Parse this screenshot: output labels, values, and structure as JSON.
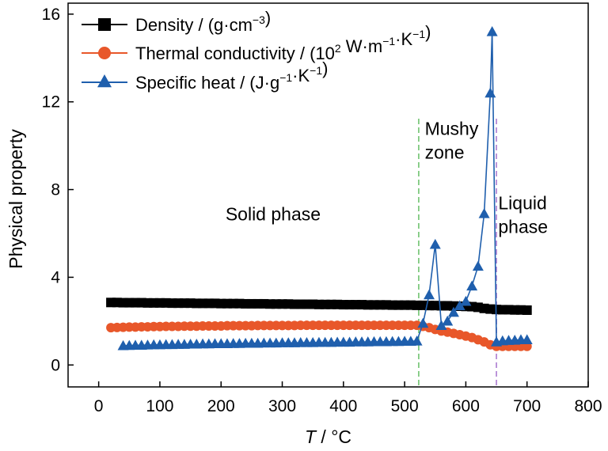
{
  "chart_data": {
    "type": "line",
    "xlabel": {
      "italic": "T",
      "rest": " / °C"
    },
    "ylabel": "Physical property",
    "xlim": [
      -50,
      800
    ],
    "ylim": [
      -1,
      16.5
    ],
    "xticks": [
      0,
      100,
      200,
      300,
      400,
      500,
      600,
      700,
      800
    ],
    "yticks": [
      0,
      4,
      8,
      12,
      16
    ],
    "grid": false,
    "legend_position": "top-left",
    "legend_entries": [
      {
        "parts": [
          [
            "Density / (g·cm",
            ""
          ],
          [
            "−3",
            "sup"
          ],
          [
            ")",
            ""
          ]
        ]
      },
      {
        "parts": [
          [
            "Thermal conductivity / (10",
            ""
          ],
          [
            "2",
            "sup"
          ],
          [
            " W·m",
            ""
          ],
          [
            "−1",
            "sup"
          ],
          [
            "·K",
            ""
          ],
          [
            "−1",
            "sup"
          ],
          [
            ")",
            ""
          ]
        ]
      },
      {
        "parts": [
          [
            "Specific heat / (J·g",
            ""
          ],
          [
            "−1",
            "sup"
          ],
          [
            "·K",
            ""
          ],
          [
            "−1",
            "sup"
          ],
          [
            ")",
            ""
          ]
        ]
      }
    ],
    "annotations": [
      {
        "lines": [
          "Solid phase"
        ],
        "x": 285,
        "y": 6.6,
        "anchor": "middle"
      },
      {
        "lines": [
          "Mushy",
          "zone"
        ],
        "x": 533,
        "y": 10.5,
        "anchor": "start"
      },
      {
        "lines": [
          "Liquid",
          "phase"
        ],
        "x": 653,
        "y": 7.1,
        "anchor": "start"
      }
    ],
    "vlines": [
      {
        "x": 523,
        "color": "#7fc97f"
      },
      {
        "x": 650,
        "color": "#b589d6"
      }
    ],
    "series": [
      {
        "name": "Density",
        "color": "#000000",
        "marker": "square",
        "x": [
          20,
          30,
          40,
          50,
          60,
          70,
          80,
          90,
          100,
          110,
          120,
          130,
          140,
          150,
          160,
          170,
          180,
          190,
          200,
          210,
          220,
          230,
          240,
          250,
          260,
          270,
          280,
          290,
          300,
          310,
          320,
          330,
          340,
          350,
          360,
          370,
          380,
          390,
          400,
          410,
          420,
          430,
          440,
          450,
          460,
          470,
          480,
          490,
          500,
          510,
          520,
          530,
          540,
          550,
          560,
          570,
          580,
          590,
          600,
          610,
          620,
          630,
          640,
          650,
          660,
          670,
          680,
          690,
          700
        ],
        "y": [
          2.85,
          2.85,
          2.84,
          2.84,
          2.84,
          2.84,
          2.83,
          2.83,
          2.83,
          2.83,
          2.82,
          2.82,
          2.82,
          2.82,
          2.81,
          2.81,
          2.81,
          2.81,
          2.8,
          2.8,
          2.8,
          2.8,
          2.79,
          2.79,
          2.79,
          2.79,
          2.78,
          2.78,
          2.78,
          2.78,
          2.77,
          2.77,
          2.77,
          2.77,
          2.76,
          2.76,
          2.76,
          2.76,
          2.75,
          2.75,
          2.75,
          2.75,
          2.74,
          2.74,
          2.74,
          2.74,
          2.73,
          2.73,
          2.73,
          2.73,
          2.72,
          2.72,
          2.71,
          2.71,
          2.7,
          2.7,
          2.69,
          2.68,
          2.67,
          2.66,
          2.63,
          2.58,
          2.55,
          2.53,
          2.52,
          2.52,
          2.51,
          2.51,
          2.5
        ]
      },
      {
        "name": "Thermal conductivity",
        "color": "#e8572a",
        "marker": "circle",
        "x": [
          20,
          30,
          40,
          50,
          60,
          70,
          80,
          90,
          100,
          110,
          120,
          130,
          140,
          150,
          160,
          170,
          180,
          190,
          200,
          210,
          220,
          230,
          240,
          250,
          260,
          270,
          280,
          290,
          300,
          310,
          320,
          330,
          340,
          350,
          360,
          370,
          380,
          390,
          400,
          410,
          420,
          430,
          440,
          450,
          460,
          470,
          480,
          490,
          500,
          510,
          520,
          530,
          540,
          550,
          560,
          570,
          580,
          590,
          600,
          610,
          620,
          630,
          640,
          650,
          660,
          670,
          680,
          690,
          700
        ],
        "y": [
          1.7,
          1.71,
          1.72,
          1.73,
          1.73,
          1.74,
          1.74,
          1.75,
          1.75,
          1.76,
          1.76,
          1.76,
          1.77,
          1.77,
          1.77,
          1.78,
          1.78,
          1.78,
          1.78,
          1.79,
          1.79,
          1.79,
          1.79,
          1.79,
          1.8,
          1.8,
          1.8,
          1.8,
          1.8,
          1.8,
          1.8,
          1.81,
          1.81,
          1.81,
          1.81,
          1.81,
          1.81,
          1.81,
          1.81,
          1.81,
          1.81,
          1.81,
          1.81,
          1.81,
          1.81,
          1.81,
          1.81,
          1.81,
          1.81,
          1.81,
          1.81,
          1.76,
          1.7,
          1.62,
          1.55,
          1.5,
          1.44,
          1.38,
          1.32,
          1.25,
          1.15,
          1.05,
          0.92,
          0.85,
          0.85,
          0.85,
          0.85,
          0.85,
          0.85
        ]
      },
      {
        "name": "Specific heat",
        "color": "#1f5fad",
        "marker": "triangle",
        "x": [
          40,
          50,
          60,
          70,
          80,
          90,
          100,
          110,
          120,
          130,
          140,
          150,
          160,
          170,
          180,
          190,
          200,
          210,
          220,
          230,
          240,
          250,
          260,
          270,
          280,
          290,
          300,
          310,
          320,
          330,
          340,
          350,
          360,
          370,
          380,
          390,
          400,
          410,
          420,
          430,
          440,
          450,
          460,
          470,
          480,
          490,
          500,
          510,
          520,
          530,
          540,
          550,
          560,
          570,
          580,
          590,
          600,
          610,
          620,
          630,
          640,
          643,
          650,
          660,
          670,
          680,
          690,
          700
        ],
        "y": [
          0.88,
          0.89,
          0.9,
          0.9,
          0.91,
          0.92,
          0.92,
          0.93,
          0.93,
          0.94,
          0.94,
          0.95,
          0.95,
          0.96,
          0.96,
          0.97,
          0.97,
          0.97,
          0.98,
          0.98,
          0.99,
          0.99,
          0.99,
          1.0,
          1.0,
          1.0,
          1.01,
          1.01,
          1.01,
          1.02,
          1.02,
          1.02,
          1.03,
          1.03,
          1.03,
          1.04,
          1.04,
          1.04,
          1.05,
          1.05,
          1.05,
          1.06,
          1.06,
          1.06,
          1.07,
          1.07,
          1.08,
          1.08,
          1.09,
          1.9,
          3.2,
          5.5,
          1.8,
          2.0,
          2.4,
          2.7,
          2.9,
          3.6,
          4.5,
          6.9,
          12.4,
          15.2,
          1.05,
          1.1,
          1.12,
          1.13,
          1.15,
          1.15
        ]
      }
    ]
  }
}
